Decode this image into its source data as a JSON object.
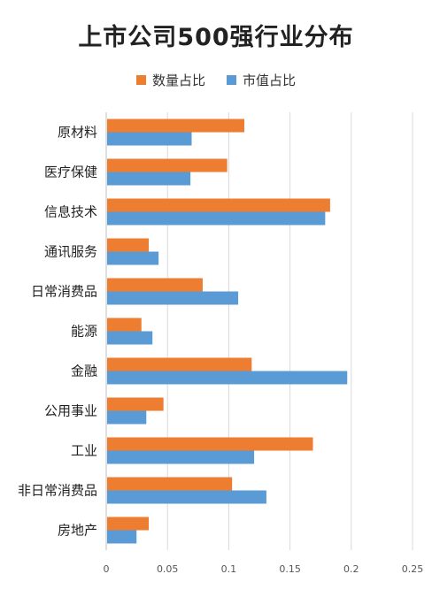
{
  "chart_data": {
    "type": "bar",
    "orientation": "horizontal",
    "title": "上市公司500强行业分布",
    "categories": [
      "原材料",
      "医疗保健",
      "信息技术",
      "通讯服务",
      "日常消费品",
      "能源",
      "金融",
      "公用事业",
      "工业",
      "非日常消费品",
      "房地产"
    ],
    "series": [
      {
        "name": "数量占比",
        "color": "#ed7d31",
        "values": [
          0.112,
          0.098,
          0.182,
          0.034,
          0.078,
          0.028,
          0.118,
          0.046,
          0.168,
          0.102,
          0.034
        ]
      },
      {
        "name": "市值占比",
        "color": "#5b9bd5",
        "values": [
          0.069,
          0.068,
          0.178,
          0.042,
          0.107,
          0.037,
          0.196,
          0.032,
          0.12,
          0.13,
          0.024
        ]
      }
    ],
    "xlim": [
      0,
      0.25
    ],
    "xticks": [
      "0",
      "0.05",
      "0.1",
      "0.15",
      "0.2",
      "0.25"
    ],
    "grid": true,
    "legend_position": "top"
  }
}
